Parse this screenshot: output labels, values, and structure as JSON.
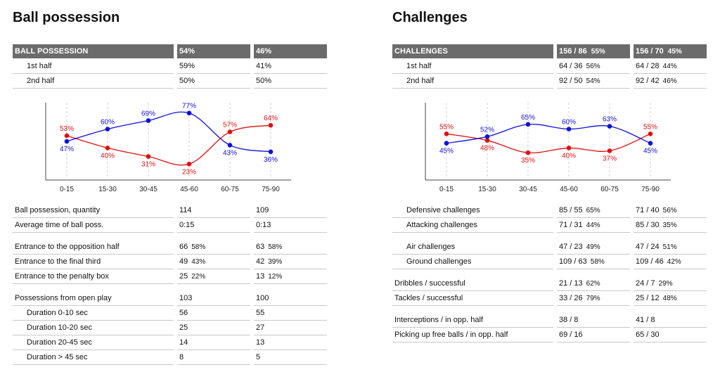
{
  "left": {
    "title": "Ball possession",
    "header": {
      "label": "BALL POSSESSION",
      "team1": "54%",
      "team2": "46%"
    },
    "halves": [
      {
        "label": "1st half",
        "v1": "59%",
        "v2": "41%"
      },
      {
        "label": "2nd half",
        "v1": "50%",
        "v2": "50%"
      }
    ],
    "rows": [
      {
        "label": "Ball possession, quantity",
        "v1": "114",
        "p1": "",
        "v2": "109",
        "p2": "",
        "indent": false
      },
      {
        "label": "Average time of ball poss.",
        "v1": "0:15",
        "p1": "",
        "v2": "0:13",
        "p2": "",
        "indent": false
      },
      {
        "label": "Entrance to the opposition half",
        "v1": "66",
        "p1": "58%",
        "v2": "63",
        "p2": "58%",
        "indent": false
      },
      {
        "label": "Entrance to the final third",
        "v1": "49",
        "p1": "43%",
        "v2": "42",
        "p2": "39%",
        "indent": false
      },
      {
        "label": "Entrance to the penalty box",
        "v1": "25",
        "p1": "22%",
        "v2": "13",
        "p2": "12%",
        "indent": false
      },
      {
        "label": "Possessions from open play",
        "v1": "103",
        "p1": "",
        "v2": "100",
        "p2": "",
        "indent": false
      },
      {
        "label": "Duration  0-10 sec",
        "v1": "56",
        "p1": "",
        "v2": "55",
        "p2": "",
        "indent": true
      },
      {
        "label": "Duration  10-20 sec",
        "v1": "25",
        "p1": "",
        "v2": "27",
        "p2": "",
        "indent": true
      },
      {
        "label": "Duration  20-45 sec",
        "v1": "14",
        "p1": "",
        "v2": "13",
        "p2": "",
        "indent": true
      },
      {
        "label": "Duration  > 45 sec",
        "v1": "8",
        "p1": "",
        "v2": "5",
        "p2": "",
        "indent": true
      }
    ]
  },
  "right": {
    "title": "Challenges",
    "header": {
      "label": "CHALLENGES",
      "team1": "156 / 86",
      "team1_pct": "55%",
      "team2": "156 / 70",
      "team2_pct": "45%"
    },
    "halves": [
      {
        "label": "1st half",
        "v1": "64 / 36",
        "p1": "56%",
        "v2": "64 / 28",
        "p2": "44%"
      },
      {
        "label": "2nd half",
        "v1": "92 / 50",
        "p1": "54%",
        "v2": "92 / 42",
        "p2": "46%"
      }
    ],
    "rows": [
      {
        "label": "Defensive challenges",
        "v1": "85 / 55",
        "p1": "65%",
        "v2": "71 / 40",
        "p2": "56%",
        "indent": true
      },
      {
        "label": "Attacking challenges",
        "v1": "71 / 31",
        "p1": "44%",
        "v2": "85 / 30",
        "p2": "35%",
        "indent": true
      },
      {
        "label": "Air challenges",
        "v1": "47 / 23",
        "p1": "49%",
        "v2": "47 / 24",
        "p2": "51%",
        "indent": true
      },
      {
        "label": "Ground challenges",
        "v1": "109 / 63",
        "p1": "58%",
        "v2": "109 / 46",
        "p2": "42%",
        "indent": true
      },
      {
        "label": "Dribbles / successful",
        "v1": "21 / 13",
        "p1": "62%",
        "v2": "24 / 7",
        "p2": "29%",
        "indent": false
      },
      {
        "label": "Tackles / successful",
        "v1": "33 / 26",
        "p1": "79%",
        "v2": "25 / 12",
        "p2": "48%",
        "indent": false
      },
      {
        "label": "Interceptions / in opp. half",
        "v1": "38 / 8",
        "p1": "",
        "v2": "41 / 8",
        "p2": "",
        "indent": false
      },
      {
        "label": "Picking up free balls / in opp. half",
        "v1": "69 / 16",
        "p1": "",
        "v2": "65 / 30",
        "p2": "",
        "indent": false
      }
    ]
  },
  "colors": {
    "team1": "#e01010",
    "team2": "#1010d8",
    "header_bg": "#6b6b6b"
  },
  "chart_data": [
    {
      "type": "line",
      "x": [
        "0-15",
        "15-30",
        "30-45",
        "45-60",
        "60-75",
        "75-90"
      ],
      "ylim": [
        0,
        100
      ],
      "series": [
        {
          "color": "#e01010",
          "values": [
            53,
            40,
            31,
            23,
            57,
            64
          ],
          "labels": [
            "53%",
            "40%",
            "31%",
            "23%",
            "57%",
            "64%"
          ]
        },
        {
          "color": "#1010d8",
          "values": [
            47,
            60,
            69,
            77,
            43,
            36
          ],
          "labels": [
            "47%",
            "60%",
            "69%",
            "77%",
            "43%",
            "36%"
          ]
        }
      ]
    },
    {
      "type": "line",
      "x": [
        "0-15",
        "15-30",
        "30-45",
        "45-60",
        "60-75",
        "75-90"
      ],
      "ylim": [
        0,
        100
      ],
      "series": [
        {
          "color": "#e01010",
          "values": [
            55,
            48,
            35,
            40,
            37,
            55
          ],
          "labels": [
            "55%",
            "48%",
            "35%",
            "40%",
            "37%",
            "55%"
          ]
        },
        {
          "color": "#1010d8",
          "values": [
            45,
            52,
            65,
            60,
            63,
            45
          ],
          "labels": [
            "45%",
            "52%",
            "65%",
            "60%",
            "63%",
            "45%"
          ]
        }
      ]
    }
  ]
}
